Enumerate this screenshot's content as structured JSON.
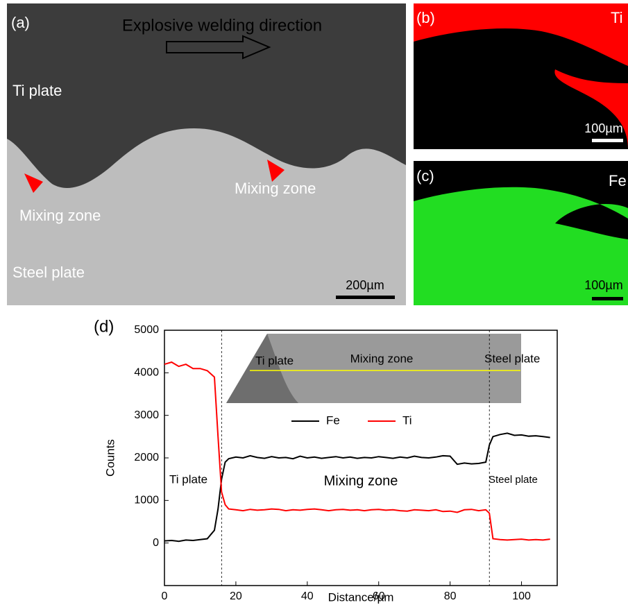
{
  "panels": {
    "a": {
      "label": "(a)",
      "direction": "Explosive welding direction",
      "top_plate": "Ti plate",
      "mixing_left": "Mixing zone",
      "mixing_right": "Mixing zone",
      "bottom_plate": "Steel plate",
      "scale": "200µm"
    },
    "b": {
      "label": "(b)",
      "element": "Ti",
      "scale": "100µm"
    },
    "c": {
      "label": "(c)",
      "element": "Fe",
      "scale": "100µm"
    }
  },
  "chart_data": {
    "type": "line",
    "label": "(d)",
    "x_label": "Distance/µm",
    "y_label": "Counts",
    "xlim": [
      0,
      110
    ],
    "ylim": [
      -1000,
      5000
    ],
    "xticks": [
      0,
      20,
      40,
      60,
      80,
      100
    ],
    "yticks": [
      0,
      1000,
      2000,
      3000,
      4000,
      5000
    ],
    "reference_lines": [
      16,
      91
    ],
    "annotations": [
      "Ti plate",
      "Mixing zone",
      "Steel plate"
    ],
    "inset": {
      "left": "Ti plate",
      "middle": "Mixing zone",
      "right": "Steel plate"
    },
    "x": [
      0,
      2,
      4,
      6,
      8,
      10,
      12,
      14,
      15,
      16,
      17,
      18,
      20,
      22,
      24,
      26,
      28,
      30,
      32,
      34,
      36,
      38,
      40,
      42,
      44,
      46,
      48,
      50,
      52,
      54,
      56,
      58,
      60,
      62,
      64,
      66,
      68,
      70,
      72,
      74,
      76,
      78,
      80,
      82,
      84,
      86,
      88,
      90,
      91,
      92,
      94,
      96,
      98,
      100,
      102,
      104,
      106,
      108
    ],
    "series": [
      {
        "name": "Fe",
        "color": "#000000",
        "values": [
          50,
          60,
          40,
          70,
          60,
          80,
          100,
          300,
          800,
          1500,
          1900,
          1980,
          2020,
          2000,
          2050,
          2010,
          1990,
          2030,
          2000,
          2010,
          1980,
          2040,
          2000,
          2020,
          1990,
          2010,
          2030,
          2000,
          2020,
          1990,
          2010,
          2000,
          2030,
          2010,
          1990,
          2020,
          2000,
          2040,
          2010,
          2000,
          2020,
          2050,
          2040,
          1850,
          1880,
          1860,
          1870,
          1900,
          2300,
          2500,
          2550,
          2580,
          2530,
          2540,
          2510,
          2520,
          2500,
          2480
        ]
      },
      {
        "name": "Ti",
        "color": "#ff0000",
        "values": [
          4200,
          4250,
          4150,
          4200,
          4100,
          4100,
          4050,
          3900,
          2500,
          1200,
          900,
          800,
          780,
          760,
          790,
          770,
          780,
          800,
          790,
          760,
          780,
          770,
          790,
          800,
          780,
          760,
          780,
          790,
          770,
          780,
          760,
          780,
          790,
          770,
          780,
          760,
          750,
          780,
          770,
          760,
          780,
          740,
          750,
          720,
          780,
          790,
          760,
          780,
          700,
          100,
          80,
          70,
          80,
          90,
          70,
          80,
          70,
          90
        ]
      }
    ]
  }
}
